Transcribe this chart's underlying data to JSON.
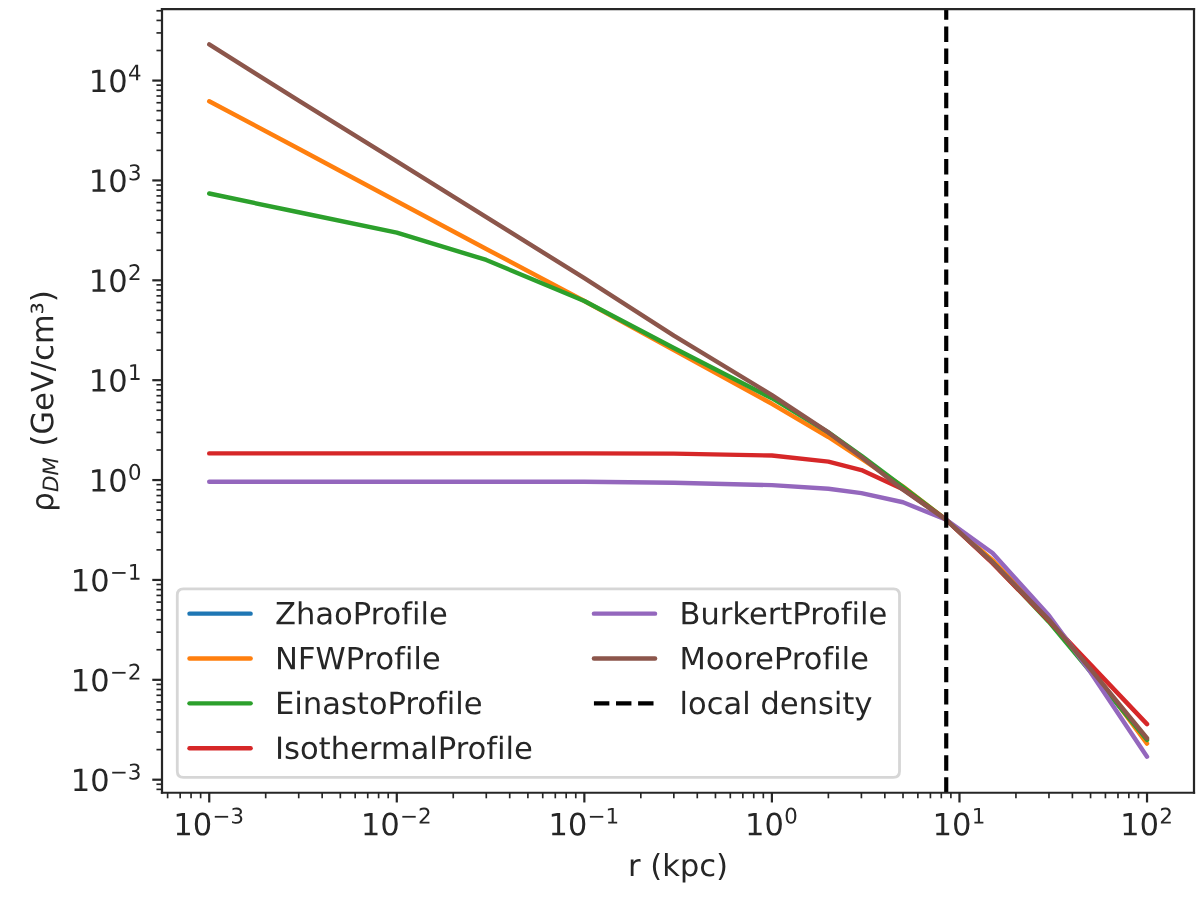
{
  "chart_data": {
    "type": "line",
    "xlabel": "r (kpc)",
    "ylabel": "ρ$_{DM}$ (GeV/cm³)",
    "log": "xy",
    "grid": false,
    "legend": "bottom left",
    "marker": "none",
    "line_style": "solid",
    "x": [
      0.001,
      0.003,
      0.01,
      0.03,
      0.1,
      0.3,
      1,
      2,
      3,
      5,
      8.5,
      15,
      30,
      50,
      100
    ],
    "xlim": [
      0.00056,
      178
    ],
    "ylim": [
      0.00074,
      52000
    ],
    "xticks": [
      {
        "value": 0.001,
        "label": "10$^{−3}$"
      },
      {
        "value": 0.01,
        "label": "10$^{−2}$"
      },
      {
        "value": 0.1,
        "label": "10$^{−1}$"
      },
      {
        "value": 1,
        "label": "10$^{0}$"
      },
      {
        "value": 10,
        "label": "10$^{1}$"
      },
      {
        "value": 100,
        "label": "10$^{2}$"
      }
    ],
    "yticks": [
      {
        "value": 0.001,
        "label": "10$^{−3}$"
      },
      {
        "value": 0.01,
        "label": "10$^{−2}$"
      },
      {
        "value": 0.1,
        "label": "10$^{−1}$"
      },
      {
        "value": 1,
        "label": "10$^{0}$"
      },
      {
        "value": 10,
        "label": "10$^{1}$"
      },
      {
        "value": 100,
        "label": "10$^{2}$"
      },
      {
        "value": 1000,
        "label": "10$^{3}$"
      },
      {
        "value": 10000,
        "label": "10$^{4}$"
      }
    ],
    "series": [
      {
        "name": "ZhaoProfile",
        "color": "#1f77b4",
        "values": [
          null,
          null,
          null,
          null,
          null,
          null,
          null,
          null,
          null,
          null,
          null,
          null,
          null,
          null,
          null
        ]
      },
      {
        "name": "NFWProfile",
        "color": "#ff7f0e",
        "values": [
          6200,
          2080,
          620,
          206,
          62,
          20,
          5.8,
          2.7,
          1.64,
          0.86,
          0.4,
          0.158,
          0.041,
          0.0132,
          0.0023
        ]
      },
      {
        "name": "EinastoProfile",
        "color": "#2ca02c",
        "values": [
          740,
          480,
          300,
          160,
          62,
          21,
          6.6,
          3.0,
          1.75,
          0.85,
          0.4,
          0.15,
          0.038,
          0.012,
          0.0025
        ]
      },
      {
        "name": "IsothermalProfile",
        "color": "#d62728",
        "values": [
          1.85,
          1.85,
          1.85,
          1.85,
          1.85,
          1.84,
          1.76,
          1.53,
          1.26,
          0.81,
          0.4,
          0.147,
          0.039,
          0.0142,
          0.0036
        ]
      },
      {
        "name": "BurkertProfile",
        "color": "#9467bd",
        "values": [
          0.96,
          0.96,
          0.96,
          0.96,
          0.96,
          0.94,
          0.89,
          0.82,
          0.74,
          0.6,
          0.4,
          0.186,
          0.044,
          0.0119,
          0.0017
        ]
      },
      {
        "name": "MooreProfile",
        "color": "#8c564b",
        "values": [
          23000,
          6300,
          1550,
          430,
          105,
          28,
          7.1,
          3.0,
          1.7,
          0.8,
          0.4,
          0.15,
          0.04,
          0.0128,
          0.0026
        ]
      }
    ],
    "ref_lines": [
      {
        "axis": "x",
        "value": 8.5,
        "label": "local density",
        "color": "#000000",
        "line_style": "dashed"
      }
    ]
  }
}
